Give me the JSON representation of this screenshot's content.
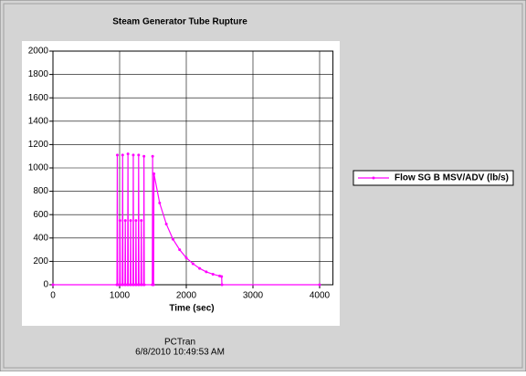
{
  "chart_data": {
    "type": "line",
    "title": "Steam Generator Tube Rupture",
    "x_label": "Time (sec)",
    "footer": [
      "PCTran",
      "6/8/2010 10:49:53 AM"
    ],
    "x": [
      0,
      960,
      965,
      970,
      1000,
      1005,
      1010,
      1040,
      1045,
      1050,
      1080,
      1085,
      1090,
      1120,
      1125,
      1130,
      1160,
      1165,
      1170,
      1200,
      1205,
      1210,
      1240,
      1245,
      1250,
      1280,
      1285,
      1290,
      1320,
      1325,
      1330,
      1360,
      1365,
      1370,
      1490,
      1495,
      1500,
      1510,
      1515,
      1600,
      1700,
      1800,
      1900,
      2000,
      2100,
      2200,
      2300,
      2400,
      2500,
      2530,
      2535,
      4000
    ],
    "series": [
      {
        "name": "Flow SG B MSV/ADV (lb/s)",
        "color": "#ff00ff",
        "values": [
          0,
          0,
          1110,
          0,
          0,
          550,
          0,
          0,
          1110,
          0,
          0,
          550,
          0,
          0,
          1120,
          0,
          0,
          550,
          0,
          0,
          1110,
          0,
          0,
          550,
          0,
          0,
          1110,
          0,
          0,
          550,
          0,
          0,
          1100,
          0,
          0,
          1100,
          0,
          0,
          950,
          700,
          520,
          390,
          300,
          230,
          180,
          140,
          110,
          90,
          75,
          70,
          0,
          0
        ]
      }
    ],
    "xlim": [
      0,
      4200
    ],
    "xticks": [
      0,
      1000,
      2000,
      3000,
      4000
    ],
    "ylim": [
      0,
      2000
    ],
    "yticks": [
      0,
      200,
      400,
      600,
      800,
      1000,
      1200,
      1400,
      1600,
      1800,
      2000
    ],
    "grid": true,
    "legend": "right"
  }
}
